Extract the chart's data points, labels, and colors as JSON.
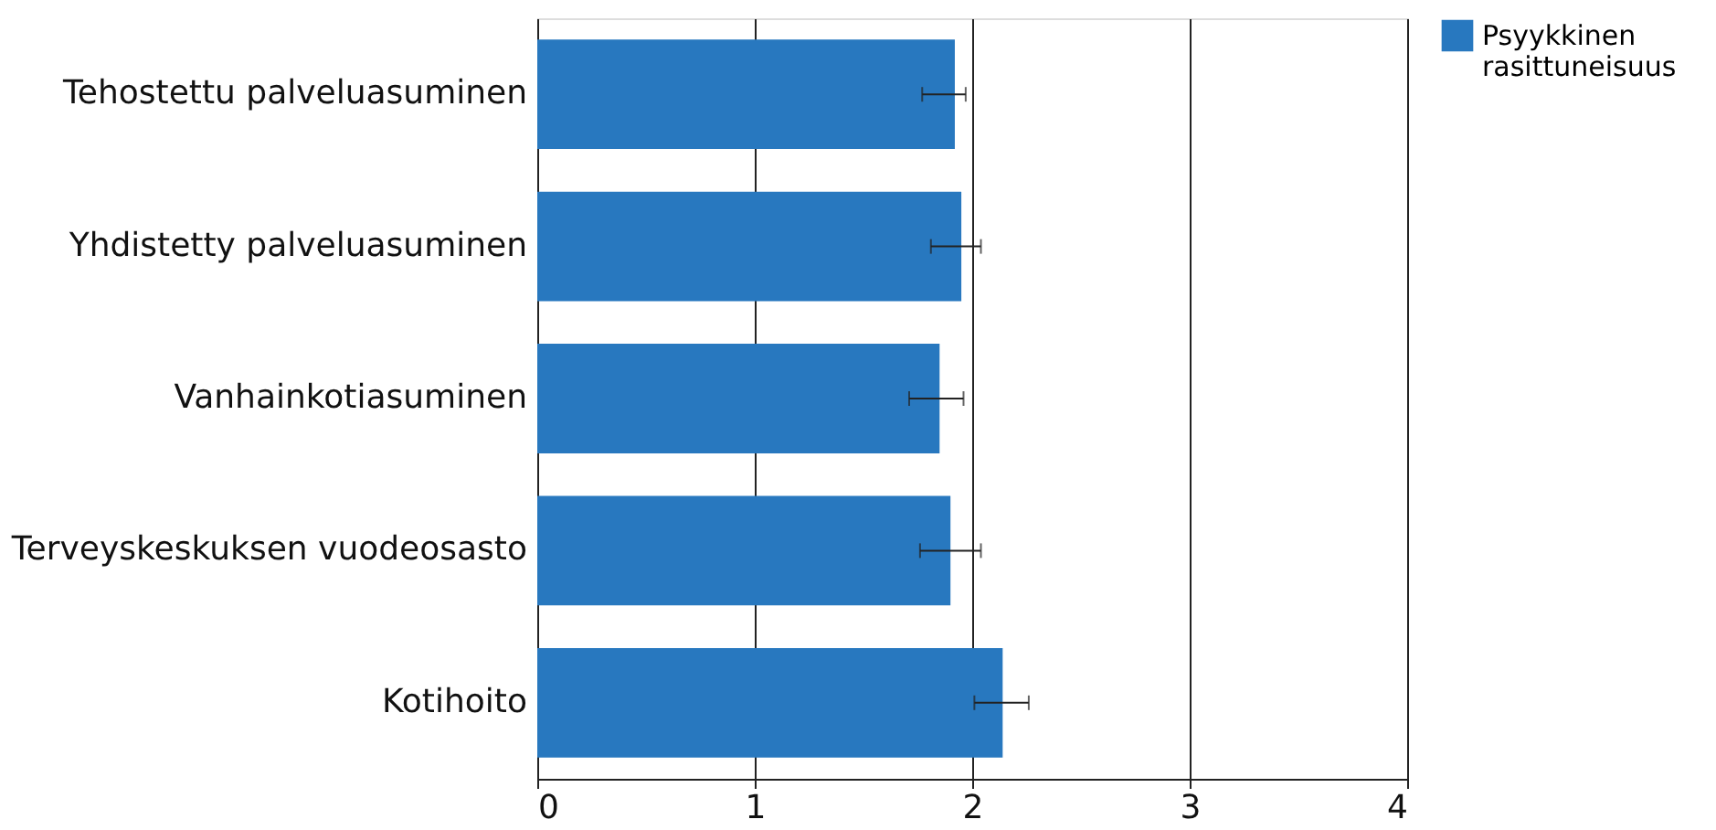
{
  "chart_data": {
    "type": "bar",
    "orientation": "horizontal",
    "categories": [
      "Tehostettu palveluasuminen",
      "Yhdistetty palveluasuminen",
      "Vanhainkotiasuminen",
      "Terveyskeskuksen vuodeosasto",
      "Kotihoito"
    ],
    "series": [
      {
        "name": "Psyykkinen rasittuneisuus",
        "color": "#2878bf",
        "values": [
          1.92,
          1.95,
          1.85,
          1.9,
          2.14
        ],
        "errors": [
          [
            1.77,
            1.97
          ],
          [
            1.81,
            2.04
          ],
          [
            1.71,
            1.96
          ],
          [
            1.76,
            2.04
          ],
          [
            2.01,
            2.26
          ]
        ]
      }
    ],
    "xlim": [
      0,
      4
    ],
    "xticks": [
      0,
      1,
      2,
      3,
      4
    ],
    "grid": "x",
    "legend": "top right"
  }
}
